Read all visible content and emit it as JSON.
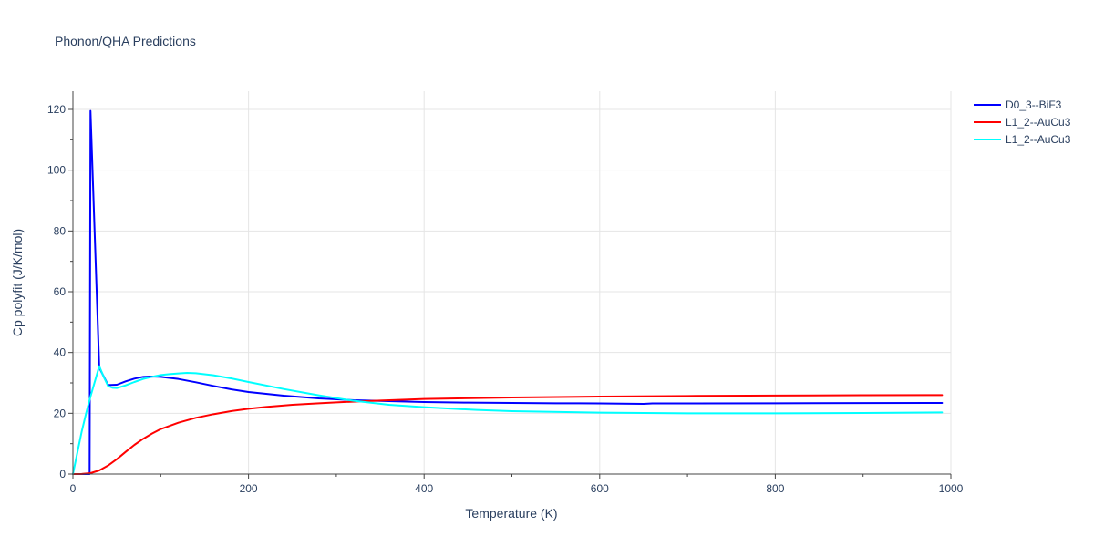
{
  "chart_data": {
    "type": "line",
    "title": "Phonon/QHA Predictions",
    "xlabel": "Temperature (K)",
    "ylabel": "Cp polyfit (J/K/mol)",
    "xlim": [
      0,
      1000
    ],
    "ylim": [
      0,
      126
    ],
    "xticks": [
      0,
      200,
      400,
      600,
      800,
      1000
    ],
    "yticks": [
      0,
      20,
      40,
      60,
      80,
      100,
      120
    ],
    "grid": true,
    "legend_position": "top-right",
    "series": [
      {
        "name": "D0_3--BiF3",
        "color": "#0000ff",
        "x": [
          0,
          19,
          20,
          30,
          40,
          50,
          60,
          70,
          80,
          90,
          100,
          120,
          140,
          160,
          180,
          200,
          240,
          280,
          320,
          360,
          400,
          450,
          500,
          550,
          600,
          650,
          660,
          700,
          800,
          900,
          990
        ],
        "y": [
          0,
          0,
          119.5,
          35,
          29.3,
          29.4,
          30.5,
          31.4,
          32.0,
          32.1,
          32.0,
          31.3,
          30.2,
          29.0,
          27.9,
          27.0,
          25.8,
          24.9,
          24.3,
          24.0,
          23.7,
          23.5,
          23.4,
          23.3,
          23.25,
          23.1,
          23.25,
          23.25,
          23.3,
          23.35,
          23.4
        ]
      },
      {
        "name": "L1_2--AuCu3",
        "color": "#ff0000",
        "x": [
          0,
          10,
          20,
          30,
          40,
          50,
          60,
          70,
          80,
          90,
          100,
          120,
          140,
          160,
          180,
          200,
          220,
          250,
          280,
          300,
          350,
          400,
          500,
          600,
          700,
          800,
          900,
          990
        ],
        "y": [
          0,
          0.05,
          0.3,
          1.2,
          2.8,
          4.9,
          7.3,
          9.6,
          11.6,
          13.3,
          14.8,
          16.9,
          18.5,
          19.7,
          20.7,
          21.5,
          22.1,
          22.8,
          23.3,
          23.6,
          24.2,
          24.7,
          25.2,
          25.5,
          25.7,
          25.85,
          25.95,
          26.0
        ]
      },
      {
        "name": "L1_2--AuCu3",
        "color": "#00ffff",
        "x": [
          0,
          5,
          10,
          15,
          20,
          25,
          30,
          35,
          40,
          45,
          50,
          60,
          70,
          80,
          90,
          100,
          110,
          120,
          130,
          140,
          160,
          180,
          200,
          240,
          280,
          320,
          360,
          400,
          460,
          500,
          600,
          700,
          800,
          900,
          990
        ],
        "y": [
          0,
          7,
          14,
          20,
          25.5,
          30.5,
          35.5,
          32,
          29,
          28.4,
          28.3,
          29.2,
          30.3,
          31.3,
          32.0,
          32.6,
          32.9,
          33.1,
          33.3,
          33.2,
          32.5,
          31.5,
          30.3,
          28.0,
          25.9,
          24.1,
          22.8,
          22.0,
          21.1,
          20.7,
          20.2,
          20.0,
          20.0,
          20.1,
          20.3
        ]
      }
    ]
  }
}
